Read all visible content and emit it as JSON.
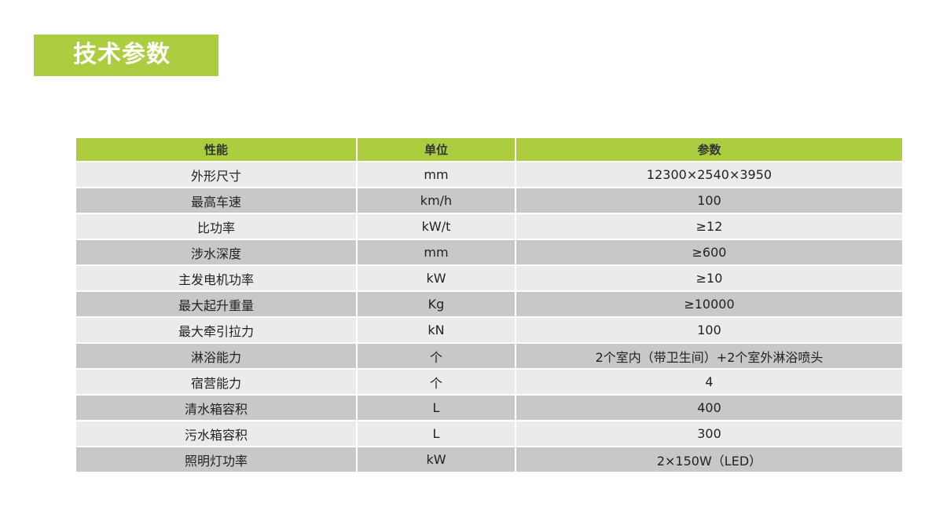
{
  "title": "技术参数",
  "colors": {
    "accent": "#abcd3f",
    "row_light": "#ebebeb",
    "row_dark": "#c8c8c8"
  },
  "table": {
    "headers": [
      "性能",
      "单位",
      "参数"
    ],
    "rows": [
      [
        "外形尺寸",
        "mm",
        "12300×2540×3950"
      ],
      [
        "最高车速",
        "km/h",
        "100"
      ],
      [
        "比功率",
        "kW/t",
        "≥12"
      ],
      [
        "涉水深度",
        "mm",
        "≥600"
      ],
      [
        "主发电机功率",
        "kW",
        "≥10"
      ],
      [
        "最大起升重量",
        "Kg",
        "≥10000"
      ],
      [
        "最大牵引拉力",
        "kN",
        "100"
      ],
      [
        "淋浴能力",
        "个",
        "2个室内（带卫生间）+2个室外淋浴喷头"
      ],
      [
        "宿营能力",
        "个",
        "4"
      ],
      [
        "清水箱容积",
        "L",
        "400"
      ],
      [
        "污水箱容积",
        "L",
        "300"
      ],
      [
        "照明灯功率",
        "kW",
        "2×150W（LED）"
      ]
    ]
  }
}
